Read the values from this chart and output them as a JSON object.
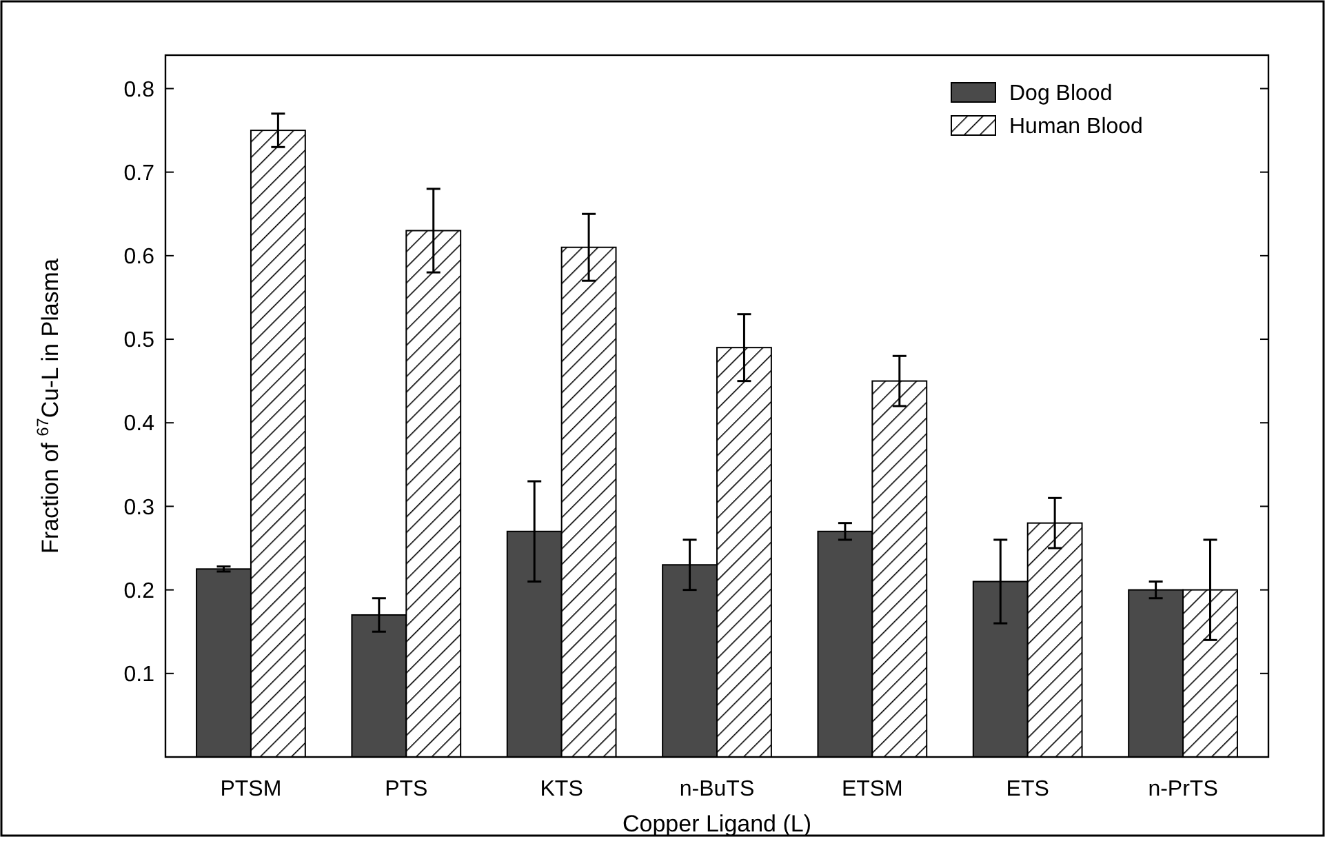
{
  "chart_data": {
    "type": "bar",
    "xlabel": "Copper Ligand (L)",
    "ylabel": "Fraction of $^{67}$Cu-L in Plasma",
    "categories": [
      "PTSM",
      "PTS",
      "KTS",
      "n-BuTS",
      "ETSM",
      "ETS",
      "n-PrTS"
    ],
    "series": [
      {
        "name": "Dog Blood",
        "color": "#4a4a4a",
        "values": [
          0.225,
          0.17,
          0.27,
          0.23,
          0.27,
          0.21,
          0.2
        ],
        "errors": [
          0.003,
          0.02,
          0.06,
          0.03,
          0.01,
          0.05,
          0.01
        ]
      },
      {
        "name": "Human Blood",
        "color": "#000000",
        "values": [
          0.75,
          0.63,
          0.61,
          0.49,
          0.45,
          0.28,
          0.2
        ],
        "errors": [
          0.02,
          0.05,
          0.04,
          0.04,
          0.03,
          0.03,
          0.06
        ]
      }
    ],
    "ylim": [
      0,
      0.84
    ],
    "yticks": [
      0.1,
      0.2,
      0.3,
      0.4,
      0.5,
      0.6,
      0.7,
      0.8
    ],
    "grid": false,
    "legend": "top right"
  }
}
